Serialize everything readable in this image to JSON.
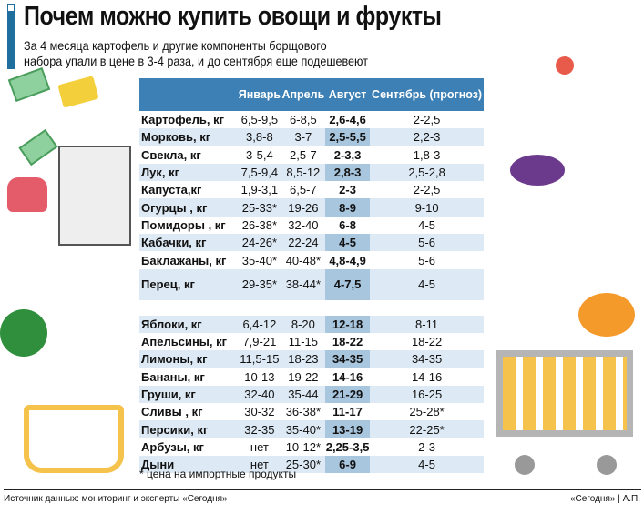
{
  "title": "Почем можно купить овощи и фрукты",
  "subtitle_line1": "За 4 месяца картофель и другие компоненты борщового",
  "subtitle_line2": "набора упали в цене в 3-4 раза, и до сентября еще подешевеют",
  "columns": [
    "",
    "Январь",
    "Апрель",
    "Август",
    "Сентябрь (прогноз)"
  ],
  "vegetables": [
    [
      "Картофель, кг",
      "6,5-9,5",
      "6-8,5",
      "2,6-4,6",
      "2-2,5"
    ],
    [
      "Морковь, кг",
      "3,8-8",
      "3-7",
      "2,5-5,5",
      "2,2-3"
    ],
    [
      "Свекла, кг",
      "3-5,4",
      "2,5-7",
      "2-3,3",
      "1,8-3"
    ],
    [
      "Лук, кг",
      "7,5-9,4",
      "8,5-12",
      "2,8-3",
      "2,5-2,8"
    ],
    [
      "Капуста,кг",
      "1,9-3,1",
      "6,5-7",
      "2-3",
      "2-2,5"
    ],
    [
      "Огурцы , кг",
      "25-33*",
      "19-26",
      "8-9",
      "9-10"
    ],
    [
      "Помидоры , кг",
      "26-38*",
      "32-40",
      "6-8",
      "4-5"
    ],
    [
      "Кабачки, кг",
      "24-26*",
      "22-24",
      "4-5",
      "5-6"
    ],
    [
      "Баклажаны, кг",
      "35-40*",
      "40-48*",
      "4,8-4,9",
      "5-6"
    ],
    [
      "Перец, кг",
      "29-35*",
      "38-44*",
      "4-7,5",
      "4-5"
    ]
  ],
  "fruits": [
    [
      "Яблоки, кг",
      "6,4-12",
      "8-20",
      "12-18",
      "8-11"
    ],
    [
      "Апельсины, кг",
      "7,9-21",
      "11-15",
      "18-22",
      "18-22"
    ],
    [
      "Лимоны, кг",
      "11,5-15",
      "18-23",
      "34-35",
      "34-35"
    ],
    [
      "Бананы, кг",
      "10-13",
      "19-22",
      "14-16",
      "14-16"
    ],
    [
      "Груши, кг",
      "32-40",
      "35-44",
      "21-29",
      "16-25"
    ],
    [
      "Сливы , кг",
      "30-32",
      "36-38*",
      "11-17",
      "25-28*"
    ],
    [
      "Персики, кг",
      "32-35",
      "35-40*",
      "13-19",
      "22-25*"
    ],
    [
      "Арбузы, кг",
      "нет",
      "10-12*",
      "2,25-3,5",
      "2-3"
    ],
    [
      "Дыни",
      "нет",
      "25-30*",
      "6-9",
      "4-5"
    ]
  ],
  "footnote": "* цена на импортные продукты",
  "source": "Источник данных: мониторинг и эксперты «Сегодня»",
  "credit": "«Сегодня» | А.П."
}
